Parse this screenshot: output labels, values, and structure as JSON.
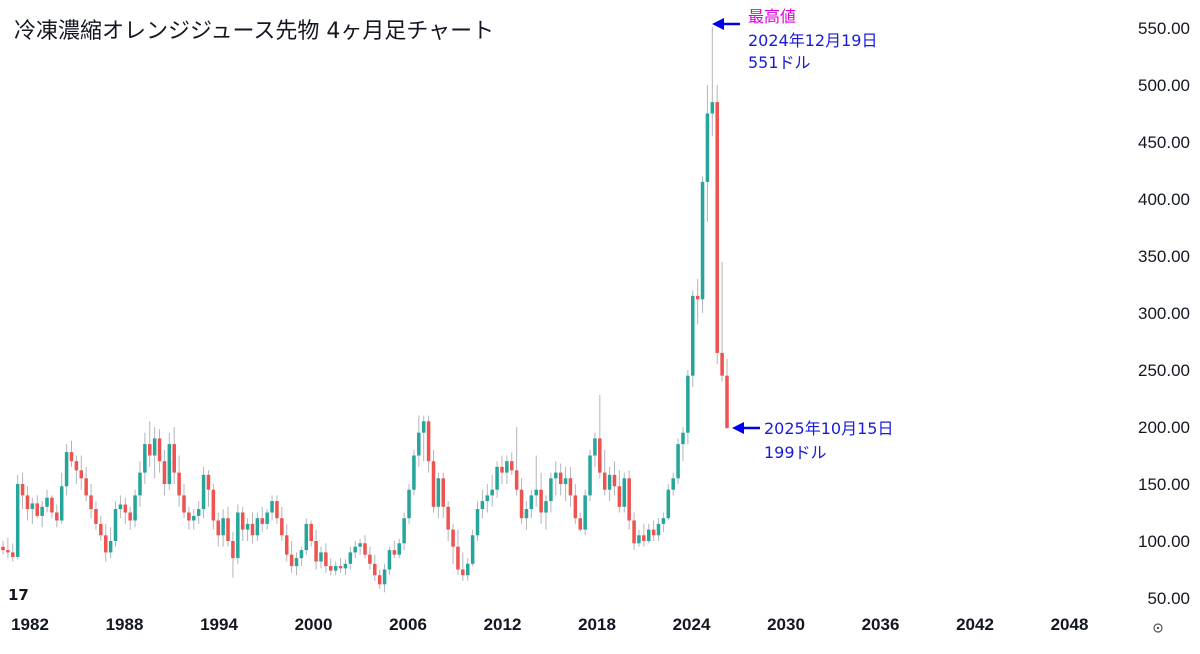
{
  "chart_data": {
    "type": "candlestick",
    "title": "冷凍濃縮オレンジジュース先物 4ヶ月足チャート",
    "y_ticks": [
      "550.00",
      "500.00",
      "450.00",
      "400.00",
      "350.00",
      "300.00",
      "250.00",
      "200.00",
      "150.00",
      "100.00",
      "50.00"
    ],
    "x_ticks": [
      "1982",
      "1988",
      "1994",
      "2000",
      "2006",
      "2012",
      "2018",
      "2024",
      "2030",
      "2036",
      "2042",
      "2048"
    ],
    "ylim": [
      50,
      550
    ],
    "grid": false,
    "colors": {
      "up": "#26a69a",
      "down": "#ef5350",
      "arrow": "#0000ee",
      "highlight": "#e000e0",
      "text": "#131722"
    },
    "annotations": [
      {
        "lines": [
          "最高値",
          "2024年12月19日",
          "551ドル"
        ],
        "colors": [
          "#e000e0",
          "#1a1adb",
          "#1a1adb"
        ],
        "value": 551
      },
      {
        "lines": [
          "2025年10月15日",
          "199ドル"
        ],
        "colors": [
          "#1a1adb",
          "#1a1adb"
        ],
        "value": 199
      }
    ],
    "logo": "17",
    "candles_note": "Each candle covers 4 months: [open, high, low, close]",
    "candles": [
      [
        95,
        100,
        88,
        92
      ],
      [
        92,
        103,
        85,
        90
      ],
      [
        90,
        98,
        82,
        86
      ],
      [
        86,
        158,
        84,
        150
      ],
      [
        150,
        160,
        128,
        140
      ],
      [
        140,
        148,
        118,
        128
      ],
      [
        128,
        138,
        115,
        133
      ],
      [
        133,
        140,
        120,
        122
      ],
      [
        122,
        135,
        112,
        130
      ],
      [
        130,
        145,
        125,
        138
      ],
      [
        138,
        140,
        120,
        125
      ],
      [
        125,
        132,
        112,
        118
      ],
      [
        118,
        160,
        115,
        148
      ],
      [
        148,
        185,
        140,
        178
      ],
      [
        178,
        188,
        165,
        170
      ],
      [
        170,
        175,
        150,
        162
      ],
      [
        162,
        175,
        145,
        155
      ],
      [
        155,
        165,
        135,
        140
      ],
      [
        140,
        150,
        120,
        128
      ],
      [
        128,
        135,
        110,
        115
      ],
      [
        115,
        122,
        100,
        105
      ],
      [
        105,
        115,
        82,
        90
      ],
      [
        90,
        112,
        85,
        100
      ],
      [
        100,
        135,
        95,
        128
      ],
      [
        128,
        140,
        120,
        132
      ],
      [
        132,
        138,
        115,
        125
      ],
      [
        125,
        130,
        110,
        118
      ],
      [
        118,
        145,
        112,
        140
      ],
      [
        140,
        170,
        130,
        160
      ],
      [
        160,
        195,
        150,
        185
      ],
      [
        185,
        205,
        165,
        175
      ],
      [
        175,
        200,
        155,
        190
      ],
      [
        190,
        198,
        160,
        170
      ],
      [
        170,
        180,
        140,
        150
      ],
      [
        150,
        195,
        145,
        185
      ],
      [
        185,
        200,
        150,
        160
      ],
      [
        160,
        175,
        130,
        140
      ],
      [
        140,
        150,
        120,
        125
      ],
      [
        125,
        130,
        110,
        118
      ],
      [
        118,
        128,
        110,
        122
      ],
      [
        122,
        135,
        115,
        128
      ],
      [
        128,
        165,
        120,
        158
      ],
      [
        158,
        162,
        130,
        145
      ],
      [
        145,
        150,
        110,
        118
      ],
      [
        118,
        125,
        95,
        105
      ],
      [
        105,
        128,
        95,
        120
      ],
      [
        120,
        130,
        95,
        100
      ],
      [
        100,
        108,
        68,
        85
      ],
      [
        85,
        132,
        80,
        125
      ],
      [
        125,
        130,
        100,
        110
      ],
      [
        110,
        120,
        100,
        115
      ],
      [
        115,
        125,
        98,
        105
      ],
      [
        105,
        125,
        100,
        120
      ],
      [
        120,
        130,
        108,
        115
      ],
      [
        115,
        128,
        110,
        125
      ],
      [
        125,
        140,
        118,
        135
      ],
      [
        135,
        140,
        115,
        120
      ],
      [
        120,
        130,
        100,
        105
      ],
      [
        105,
        115,
        82,
        88
      ],
      [
        88,
        100,
        72,
        78
      ],
      [
        78,
        90,
        70,
        85
      ],
      [
        85,
        95,
        78,
        92
      ],
      [
        92,
        120,
        88,
        115
      ],
      [
        115,
        118,
        95,
        100
      ],
      [
        100,
        110,
        75,
        82
      ],
      [
        82,
        95,
        76,
        90
      ],
      [
        90,
        98,
        72,
        78
      ],
      [
        78,
        85,
        70,
        74
      ],
      [
        74,
        82,
        70,
        78
      ],
      [
        78,
        85,
        72,
        76
      ],
      [
        76,
        84,
        70,
        80
      ],
      [
        80,
        95,
        75,
        90
      ],
      [
        90,
        100,
        85,
        95
      ],
      [
        95,
        102,
        88,
        98
      ],
      [
        98,
        105,
        85,
        88
      ],
      [
        88,
        95,
        75,
        80
      ],
      [
        80,
        88,
        65,
        70
      ],
      [
        70,
        75,
        58,
        62
      ],
      [
        62,
        80,
        55,
        75
      ],
      [
        75,
        95,
        70,
        92
      ],
      [
        92,
        100,
        85,
        88
      ],
      [
        88,
        102,
        85,
        98
      ],
      [
        98,
        125,
        92,
        120
      ],
      [
        120,
        150,
        115,
        145
      ],
      [
        145,
        180,
        140,
        175
      ],
      [
        175,
        210,
        165,
        195
      ],
      [
        195,
        210,
        170,
        205
      ],
      [
        205,
        210,
        160,
        170
      ],
      [
        170,
        180,
        125,
        130
      ],
      [
        130,
        160,
        120,
        155
      ],
      [
        155,
        160,
        120,
        130
      ],
      [
        130,
        135,
        100,
        110
      ],
      [
        110,
        115,
        80,
        95
      ],
      [
        95,
        110,
        70,
        75
      ],
      [
        75,
        90,
        65,
        70
      ],
      [
        70,
        85,
        65,
        80
      ],
      [
        80,
        110,
        78,
        105
      ],
      [
        105,
        135,
        100,
        128
      ],
      [
        128,
        145,
        120,
        135
      ],
      [
        135,
        150,
        125,
        140
      ],
      [
        140,
        158,
        130,
        145
      ],
      [
        145,
        170,
        138,
        165
      ],
      [
        165,
        175,
        150,
        160
      ],
      [
        160,
        175,
        150,
        170
      ],
      [
        170,
        178,
        158,
        162
      ],
      [
        162,
        200,
        140,
        145
      ],
      [
        145,
        155,
        115,
        120
      ],
      [
        120,
        135,
        110,
        128
      ],
      [
        128,
        145,
        120,
        140
      ],
      [
        140,
        175,
        130,
        145
      ],
      [
        145,
        160,
        115,
        125
      ],
      [
        125,
        140,
        110,
        135
      ],
      [
        135,
        160,
        125,
        155
      ],
      [
        155,
        170,
        140,
        160
      ],
      [
        160,
        168,
        140,
        150
      ],
      [
        150,
        165,
        135,
        155
      ],
      [
        155,
        165,
        130,
        140
      ],
      [
        140,
        150,
        115,
        120
      ],
      [
        120,
        125,
        108,
        110
      ],
      [
        110,
        145,
        105,
        140
      ],
      [
        140,
        180,
        135,
        175
      ],
      [
        175,
        195,
        165,
        190
      ],
      [
        190,
        228,
        155,
        160
      ],
      [
        160,
        180,
        140,
        145
      ],
      [
        145,
        165,
        135,
        158
      ],
      [
        158,
        170,
        140,
        148
      ],
      [
        148,
        162,
        125,
        130
      ],
      [
        130,
        160,
        125,
        155
      ],
      [
        155,
        162,
        110,
        118
      ],
      [
        118,
        125,
        92,
        98
      ],
      [
        98,
        110,
        95,
        105
      ],
      [
        105,
        115,
        95,
        100
      ],
      [
        100,
        115,
        98,
        110
      ],
      [
        110,
        118,
        100,
        105
      ],
      [
        105,
        120,
        100,
        115
      ],
      [
        115,
        125,
        108,
        120
      ],
      [
        120,
        150,
        118,
        145
      ],
      [
        145,
        160,
        140,
        155
      ],
      [
        155,
        190,
        150,
        185
      ],
      [
        185,
        200,
        170,
        195
      ],
      [
        195,
        250,
        185,
        245
      ],
      [
        245,
        320,
        235,
        315
      ],
      [
        315,
        330,
        290,
        312
      ],
      [
        312,
        420,
        300,
        415
      ],
      [
        415,
        500,
        380,
        475
      ],
      [
        475,
        551,
        455,
        485
      ],
      [
        485,
        500,
        255,
        265
      ],
      [
        265,
        345,
        240,
        245
      ],
      [
        245,
        260,
        199,
        199
      ]
    ]
  }
}
